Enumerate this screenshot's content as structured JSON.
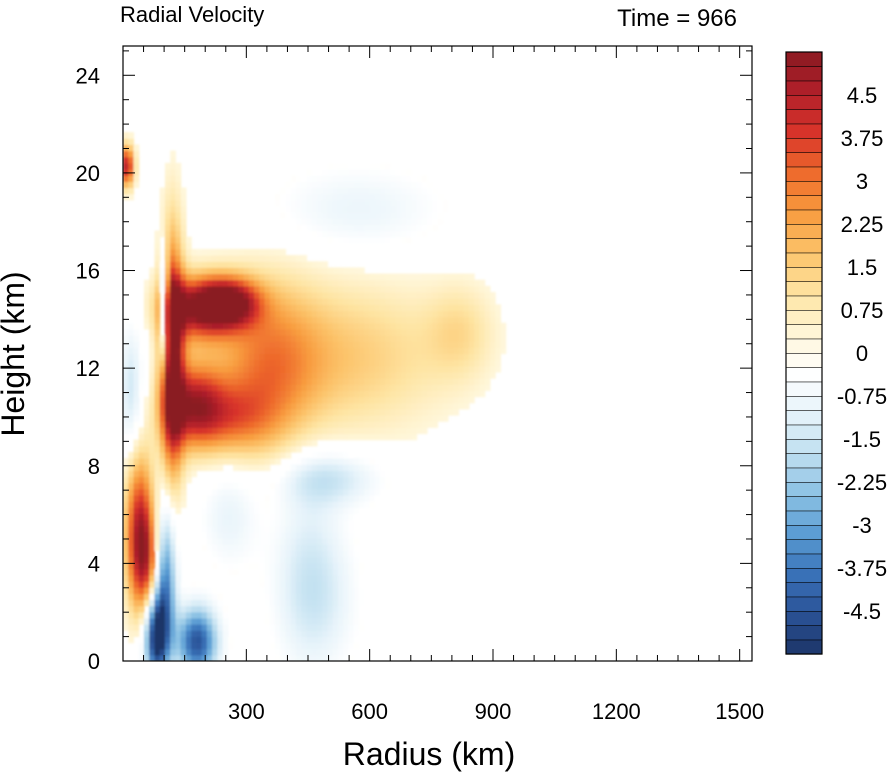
{
  "chart_data": {
    "type": "heatmap",
    "title_left": "Radial Velocity",
    "title_right": "Time = 966",
    "xlabel": "Radius (km)",
    "ylabel": "Height (km)",
    "xlim": [
      0,
      1530
    ],
    "ylim": [
      0,
      25.2
    ],
    "x_ticks": [
      300,
      600,
      900,
      1200,
      1500
    ],
    "x_tick_labels": [
      "300",
      "600",
      "900",
      "1200",
      "1500"
    ],
    "y_ticks": [
      0,
      4,
      8,
      12,
      16,
      20,
      24
    ],
    "y_tick_labels": [
      "0",
      "4",
      "8",
      "12",
      "16",
      "20",
      "24"
    ],
    "colorbar": {
      "min": -5.25,
      "max": 5.25,
      "step": 0.25,
      "labels": [
        "4.5",
        "3.75",
        "3",
        "2.25",
        "1.5",
        "0.75",
        "0",
        "-0.75",
        "-1.5",
        "-2.25",
        "-3",
        "-3.75",
        "-4.5"
      ],
      "label_values": [
        4.5,
        3.75,
        3,
        2.25,
        1.5,
        0.75,
        0,
        -0.75,
        -1.5,
        -2.25,
        -3,
        -3.75,
        -4.5
      ],
      "colors_low_to_high": [
        "#1c3568",
        "#2a5296",
        "#3a72b8",
        "#5a9cd3",
        "#8cc2e4",
        "#bfdff0",
        "#e6f3fa",
        "#ffffff",
        "#fff6d8",
        "#fee4a2",
        "#fcc36a",
        "#f89c3f",
        "#ee6a2c",
        "#d8342a",
        "#b1202a",
        "#8a1a22"
      ]
    },
    "features": [
      {
        "x": 120,
        "y": 12.5,
        "v": 5.0,
        "sx": 20,
        "sy": 3.5
      },
      {
        "x": 180,
        "y": 14.5,
        "v": 4.5,
        "sx": 60,
        "sy": 0.9
      },
      {
        "x": 260,
        "y": 14.7,
        "v": 4.5,
        "sx": 50,
        "sy": 0.7
      },
      {
        "x": 170,
        "y": 10.5,
        "v": 4.0,
        "sx": 50,
        "sy": 1.2
      },
      {
        "x": 350,
        "y": 12.0,
        "v": 2.5,
        "sx": 90,
        "sy": 2.5
      },
      {
        "x": 560,
        "y": 12.5,
        "v": 1.5,
        "sx": 160,
        "sy": 2.2
      },
      {
        "x": 820,
        "y": 13.5,
        "v": 1.0,
        "sx": 60,
        "sy": 1.4
      },
      {
        "x": 260,
        "y": 10.0,
        "v": 2.0,
        "sx": 70,
        "sy": 1.0
      },
      {
        "x": 40,
        "y": 5.5,
        "v": 4.0,
        "sx": 25,
        "sy": 2.2
      },
      {
        "x": 70,
        "y": 4.0,
        "v": 3.0,
        "sx": 30,
        "sy": 1.5
      },
      {
        "x": 10,
        "y": 20.3,
        "v": 4.5,
        "sx": 12,
        "sy": 0.6
      },
      {
        "x": 100,
        "y": 3.5,
        "v": -5.0,
        "sx": 20,
        "sy": 2.0
      },
      {
        "x": 80,
        "y": 1.0,
        "v": -5.0,
        "sx": 20,
        "sy": 1.2
      },
      {
        "x": 180,
        "y": 0.8,
        "v": -4.5,
        "sx": 35,
        "sy": 1.0
      },
      {
        "x": 100,
        "y": 14.5,
        "v": -5.0,
        "sx": 6,
        "sy": 1.5
      },
      {
        "x": 20,
        "y": 11.0,
        "v": -1.5,
        "sx": 20,
        "sy": 2.0
      },
      {
        "x": 450,
        "y": 4.0,
        "v": -1.0,
        "sx": 60,
        "sy": 3.0
      },
      {
        "x": 500,
        "y": 7.5,
        "v": -1.5,
        "sx": 90,
        "sy": 0.8
      },
      {
        "x": 570,
        "y": 18.5,
        "v": -0.9,
        "sx": 150,
        "sy": 1.3
      },
      {
        "x": 260,
        "y": 6.0,
        "v": -1.0,
        "sx": 50,
        "sy": 1.5
      },
      {
        "x": 480,
        "y": 2.5,
        "v": -0.8,
        "sx": 70,
        "sy": 2.0
      }
    ]
  }
}
